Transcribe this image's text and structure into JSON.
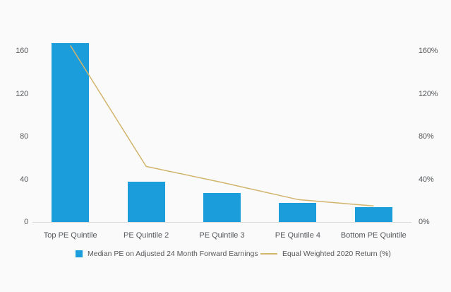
{
  "page": {
    "background": "#FAFAFA",
    "text_color": "#55575A",
    "axis_line_color": "#DBDBDB"
  },
  "chart_data": {
    "type": "bar",
    "subtype": "bar-with-line-overlay",
    "categories": [
      "Top PE Quintile",
      "PE Quintile 2",
      "PE Quintile 3",
      "PE Quintile 4",
      "Bottom PE Quintile"
    ],
    "series": [
      {
        "name": "Median PE on Adjusted 24 Month Forward Earnings",
        "type": "bar",
        "color": "#1B9DDB",
        "axis": "left",
        "values": [
          167,
          38,
          27,
          18,
          14
        ]
      },
      {
        "name": "Equal Weighted 2020 Return (%)",
        "type": "line",
        "color": "#D2B46C",
        "axis": "right",
        "values": [
          165,
          52,
          37,
          21,
          15
        ]
      }
    ],
    "title": "",
    "xlabel": "",
    "ylabel_left": "",
    "ylabel_right": "",
    "left_axis": {
      "tick_values": [
        0,
        40,
        80,
        120,
        160
      ],
      "tick_labels": [
        "0",
        "40",
        "80",
        "120",
        "160"
      ],
      "range": [
        0,
        170
      ]
    },
    "right_axis": {
      "tick_values": [
        0,
        40,
        80,
        120,
        160
      ],
      "tick_labels": [
        "0%",
        "40%",
        "80%",
        "120%",
        "160%"
      ],
      "range": [
        0,
        170
      ]
    },
    "grid": false,
    "legend_position": "bottom"
  },
  "legend": {
    "items": [
      {
        "label": "Median PE on Adjusted 24 Month Forward Earnings",
        "swatch": "square",
        "color": "#1B9DDB"
      },
      {
        "label": "Equal Weighted 2020 Return (%)",
        "swatch": "line",
        "color": "#D2B46C"
      }
    ]
  }
}
